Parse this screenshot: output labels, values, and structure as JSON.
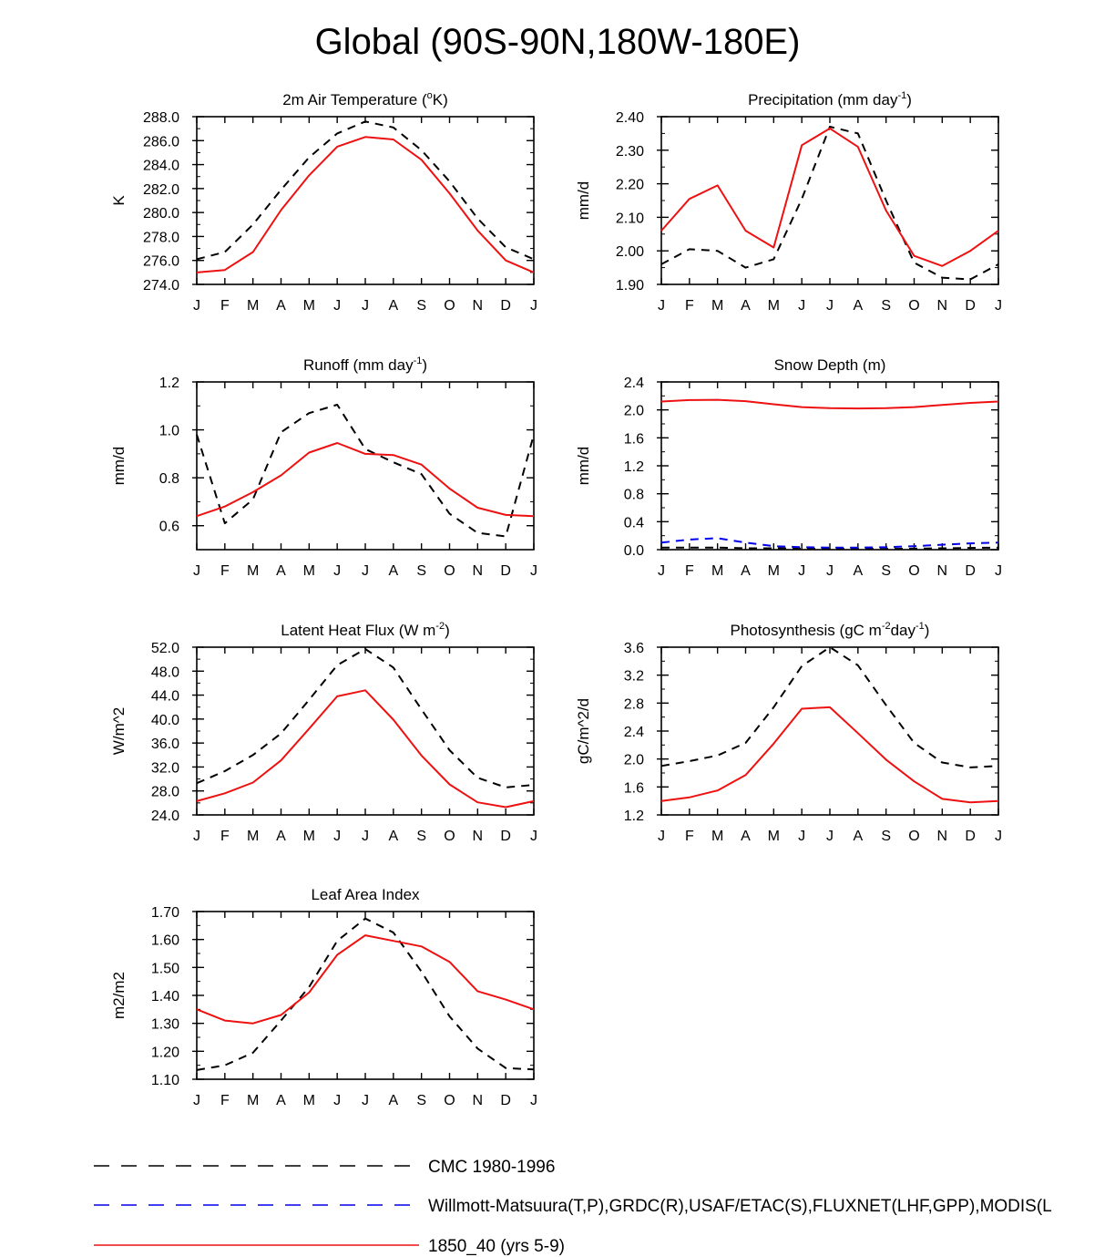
{
  "figure_title": "Global (90S-90N,180W-180E)",
  "months": [
    "J",
    "F",
    "M",
    "A",
    "M",
    "J",
    "J",
    "A",
    "S",
    "O",
    "N",
    "D",
    "J"
  ],
  "legend": [
    {
      "key": "cmc",
      "label": "CMC 1980-1996",
      "color": "#000000",
      "dash": "dashed"
    },
    {
      "key": "obs",
      "label": "Willmott-Matsuura(T,P),GRDC(R),USAF/ETAC(S),FLUXNET(LHF,GPP),MODIS(L",
      "color": "#0000ee",
      "dash": "dashed"
    },
    {
      "key": "model",
      "label": "1850_40 (yrs 5-9)",
      "color": "#ee1111",
      "dash": "solid"
    }
  ],
  "chart_data": [
    {
      "type": "line",
      "title": "2m Air Temperature (°K)",
      "title_parts": [
        {
          "t": "2m Air Temperature ("
        },
        {
          "t": "o",
          "sup": true
        },
        {
          "t": "K)"
        }
      ],
      "ylabel": "K",
      "ylim": [
        274.0,
        288.0
      ],
      "yticks": [
        "274.0",
        "276.0",
        "278.0",
        "280.0",
        "282.0",
        "284.0",
        "286.0",
        "288.0"
      ],
      "series": [
        {
          "name": "CMC 1980-1996",
          "values": [
            276.1,
            276.7,
            279.0,
            281.9,
            284.6,
            286.6,
            287.6,
            287.1,
            285.2,
            282.6,
            279.5,
            277.1,
            276.1
          ]
        },
        {
          "name": "1850_40 (yrs 5-9)",
          "values": [
            275.0,
            275.2,
            276.7,
            280.2,
            283.1,
            285.5,
            286.3,
            286.1,
            284.4,
            281.6,
            278.5,
            276.0,
            275.0
          ]
        }
      ]
    },
    {
      "type": "line",
      "title": "Precipitation (mm day-1)",
      "title_parts": [
        {
          "t": "Precipitation (mm day"
        },
        {
          "t": "-1",
          "sup": true
        },
        {
          "t": ")"
        }
      ],
      "ylabel": "mm/d",
      "ylim": [
        1.9,
        2.4
      ],
      "yticks": [
        "1.90",
        "2.00",
        "2.10",
        "2.20",
        "2.30",
        "2.40"
      ],
      "series": [
        {
          "name": "CMC 1980-1996",
          "values": [
            1.96,
            2.005,
            2.0,
            1.95,
            1.975,
            2.155,
            2.37,
            2.35,
            2.15,
            1.965,
            1.92,
            1.915,
            1.96
          ]
        },
        {
          "name": "1850_40 (yrs 5-9)",
          "values": [
            2.06,
            2.155,
            2.195,
            2.06,
            2.01,
            2.315,
            2.365,
            2.31,
            2.12,
            1.985,
            1.955,
            2.0,
            2.06
          ]
        }
      ]
    },
    {
      "type": "line",
      "title": "Runoff (mm day-1)",
      "title_parts": [
        {
          "t": "Runoff (mm day"
        },
        {
          "t": "-1",
          "sup": true
        },
        {
          "t": ")"
        }
      ],
      "ylabel": "mm/d",
      "ylim": [
        0.5,
        1.2
      ],
      "yticks": [
        "0.6",
        "0.8",
        "1.0",
        "1.2"
      ],
      "series": [
        {
          "name": "CMC 1980-1996",
          "values": [
            0.98,
            0.61,
            0.71,
            0.99,
            1.07,
            1.105,
            0.92,
            0.865,
            0.815,
            0.65,
            0.57,
            0.555,
            0.98
          ]
        },
        {
          "name": "1850_40 (yrs 5-9)",
          "values": [
            0.64,
            0.68,
            0.74,
            0.81,
            0.905,
            0.945,
            0.9,
            0.895,
            0.855,
            0.755,
            0.675,
            0.645,
            0.64
          ]
        }
      ]
    },
    {
      "type": "line",
      "title": "Snow Depth (m)",
      "title_parts": [
        {
          "t": "Snow Depth (m)"
        }
      ],
      "ylabel": "mm/d",
      "ylim": [
        0.0,
        2.4
      ],
      "yticks": [
        "0.0",
        "0.4",
        "0.8",
        "1.2",
        "1.6",
        "2.0",
        "2.4"
      ],
      "series": [
        {
          "name": "CMC 1980-1996",
          "values": [
            0.03,
            0.03,
            0.03,
            0.02,
            0.02,
            0.015,
            0.01,
            0.01,
            0.01,
            0.015,
            0.02,
            0.025,
            0.03
          ]
        },
        {
          "name": "Willmott-Matsuura(T,P),GRDC(R),USAF/ETAC(S),FLUXNET(LHF,GPP),MODIS(L",
          "values": [
            0.1,
            0.145,
            0.165,
            0.1,
            0.05,
            0.035,
            0.03,
            0.03,
            0.035,
            0.05,
            0.07,
            0.09,
            0.1
          ]
        },
        {
          "name": "1850_40 (yrs 5-9)",
          "values": [
            2.12,
            2.14,
            2.145,
            2.125,
            2.08,
            2.04,
            2.025,
            2.02,
            2.025,
            2.04,
            2.07,
            2.1,
            2.12
          ]
        }
      ]
    },
    {
      "type": "line",
      "title": "Latent Heat Flux (W m-2)",
      "title_parts": [
        {
          "t": "Latent Heat Flux (W m"
        },
        {
          "t": "-2",
          "sup": true
        },
        {
          "t": ")"
        }
      ],
      "ylabel": "W/m^2",
      "ylim": [
        24.0,
        52.0
      ],
      "yticks": [
        "24.0",
        "28.0",
        "32.0",
        "36.0",
        "40.0",
        "44.0",
        "48.0",
        "52.0"
      ],
      "series": [
        {
          "name": "CMC 1980-1996",
          "values": [
            29.3,
            31.3,
            34.0,
            37.6,
            43.2,
            49.0,
            51.7,
            48.6,
            41.6,
            34.8,
            30.2,
            28.6,
            29.0
          ]
        },
        {
          "name": "1850_40 (yrs 5-9)",
          "values": [
            26.3,
            27.6,
            29.4,
            33.1,
            38.4,
            43.8,
            44.8,
            39.9,
            33.9,
            29.1,
            26.1,
            25.3,
            26.3
          ]
        }
      ]
    },
    {
      "type": "line",
      "title": "Photosynthesis (gC m-2day-1)",
      "title_parts": [
        {
          "t": "Photosynthesis (gC m"
        },
        {
          "t": "-2",
          "sup": true
        },
        {
          "t": "day"
        },
        {
          "t": "-1",
          "sup": true
        },
        {
          "t": ")"
        }
      ],
      "ylabel": "gC/m^2/d",
      "ylim": [
        1.2,
        3.6
      ],
      "yticks": [
        "1.2",
        "1.6",
        "2.0",
        "2.4",
        "2.8",
        "3.2",
        "3.6"
      ],
      "series": [
        {
          "name": "CMC 1980-1996",
          "values": [
            1.9,
            1.97,
            2.05,
            2.23,
            2.74,
            3.33,
            3.6,
            3.34,
            2.77,
            2.23,
            1.95,
            1.88,
            1.9
          ]
        },
        {
          "name": "1850_40 (yrs 5-9)",
          "values": [
            1.4,
            1.45,
            1.55,
            1.77,
            2.22,
            2.72,
            2.74,
            2.37,
            1.99,
            1.68,
            1.43,
            1.38,
            1.4
          ]
        }
      ]
    },
    {
      "type": "line",
      "title": "Leaf Area Index",
      "title_parts": [
        {
          "t": "Leaf Area Index"
        }
      ],
      "ylabel": "m2/m2",
      "ylim": [
        1.1,
        1.7
      ],
      "yticks": [
        "1.10",
        "1.20",
        "1.30",
        "1.40",
        "1.50",
        "1.60",
        "1.70"
      ],
      "series": [
        {
          "name": "CMC 1980-1996",
          "values": [
            1.133,
            1.15,
            1.195,
            1.31,
            1.43,
            1.595,
            1.675,
            1.625,
            1.485,
            1.325,
            1.21,
            1.14,
            1.135
          ]
        },
        {
          "name": "1850_40 (yrs 5-9)",
          "values": [
            1.35,
            1.31,
            1.3,
            1.33,
            1.41,
            1.545,
            1.615,
            1.595,
            1.575,
            1.52,
            1.415,
            1.385,
            1.35
          ]
        }
      ]
    }
  ]
}
